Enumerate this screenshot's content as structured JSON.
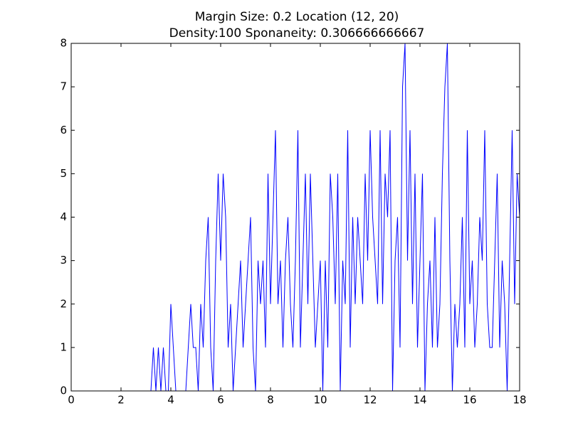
{
  "chart_data": {
    "type": "line",
    "title": "Margin Size: 0.2 Location (12, 20)",
    "subtitle": "Density:100 Sponaneity: 0.306666666667",
    "x": [
      0,
      3.2,
      3.3,
      3.4,
      3.5,
      3.6,
      3.7,
      3.8,
      3.9,
      4.0,
      4.1,
      4.2,
      4.3,
      4.4,
      4.5,
      4.6,
      4.7,
      4.8,
      4.9,
      5.0,
      5.1,
      5.2,
      5.3,
      5.4,
      5.5,
      5.6,
      5.7,
      5.8,
      5.9,
      6.0,
      6.1,
      6.2,
      6.3,
      6.4,
      6.5,
      6.6,
      6.7,
      6.8,
      6.9,
      7.0,
      7.1,
      7.2,
      7.3,
      7.4,
      7.5,
      7.6,
      7.7,
      7.8,
      7.9,
      8.0,
      8.1,
      8.2,
      8.3,
      8.4,
      8.5,
      8.6,
      8.7,
      8.8,
      8.9,
      9.0,
      9.1,
      9.2,
      9.3,
      9.4,
      9.5,
      9.6,
      9.7,
      9.8,
      9.9,
      10.0,
      10.1,
      10.2,
      10.3,
      10.4,
      10.5,
      10.6,
      10.7,
      10.8,
      10.9,
      11.0,
      11.1,
      11.2,
      11.3,
      11.4,
      11.5,
      11.6,
      11.7,
      11.8,
      11.9,
      12.0,
      12.1,
      12.2,
      12.3,
      12.4,
      12.5,
      12.6,
      12.7,
      12.8,
      12.9,
      13.0,
      13.1,
      13.2,
      13.3,
      13.4,
      13.5,
      13.6,
      13.7,
      13.8,
      13.9,
      14.0,
      14.1,
      14.2,
      14.3,
      14.4,
      14.5,
      14.6,
      14.7,
      14.8,
      14.9,
      15.0,
      15.1,
      15.2,
      15.3,
      15.4,
      15.5,
      15.6,
      15.7,
      15.8,
      15.9,
      16.0,
      16.1,
      16.2,
      16.3,
      16.4,
      16.5,
      16.6,
      16.7,
      16.8,
      16.9,
      17.0,
      17.1,
      17.2,
      17.3,
      17.4,
      17.5,
      17.6,
      17.7,
      17.8,
      17.9,
      18.0
    ],
    "series": [
      {
        "color": "#0000ff",
        "values": [
          0,
          0,
          1,
          0,
          1,
          0,
          1,
          0,
          0,
          2,
          1,
          0,
          0,
          0,
          0,
          0,
          1,
          2,
          1,
          1,
          0,
          2,
          1,
          3,
          4,
          1,
          0,
          3,
          5,
          3,
          5,
          4,
          1,
          2,
          0,
          1,
          2,
          3,
          1,
          2,
          3,
          4,
          1,
          0,
          3,
          2,
          3,
          1,
          5,
          2,
          4,
          6,
          2,
          3,
          1,
          3,
          4,
          2,
          1,
          3,
          6,
          1,
          3,
          5,
          2,
          5,
          3,
          1,
          2,
          3,
          0,
          3,
          1,
          5,
          4,
          2,
          5,
          0,
          3,
          2,
          6,
          1,
          4,
          2,
          4,
          3,
          2,
          5,
          3,
          6,
          4,
          3,
          2,
          6,
          2,
          5,
          4,
          6,
          0,
          3,
          4,
          1,
          7,
          8,
          3,
          6,
          2,
          5,
          1,
          3,
          5,
          0,
          2,
          3,
          1,
          4,
          1,
          2,
          5,
          7,
          8,
          3,
          0,
          2,
          1,
          2,
          4,
          1,
          6,
          2,
          3,
          1,
          2,
          4,
          3,
          6,
          2,
          1,
          1,
          3,
          5,
          1,
          3,
          2,
          0,
          3,
          6,
          2,
          5,
          4
        ]
      }
    ],
    "xlim": [
      0,
      18
    ],
    "xticks": [
      0,
      2,
      4,
      6,
      8,
      10,
      12,
      14,
      16,
      18
    ],
    "ylim": [
      0,
      8
    ],
    "yticks": [
      0,
      1,
      2,
      3,
      4,
      5,
      6,
      7,
      8
    ],
    "grid": false
  }
}
